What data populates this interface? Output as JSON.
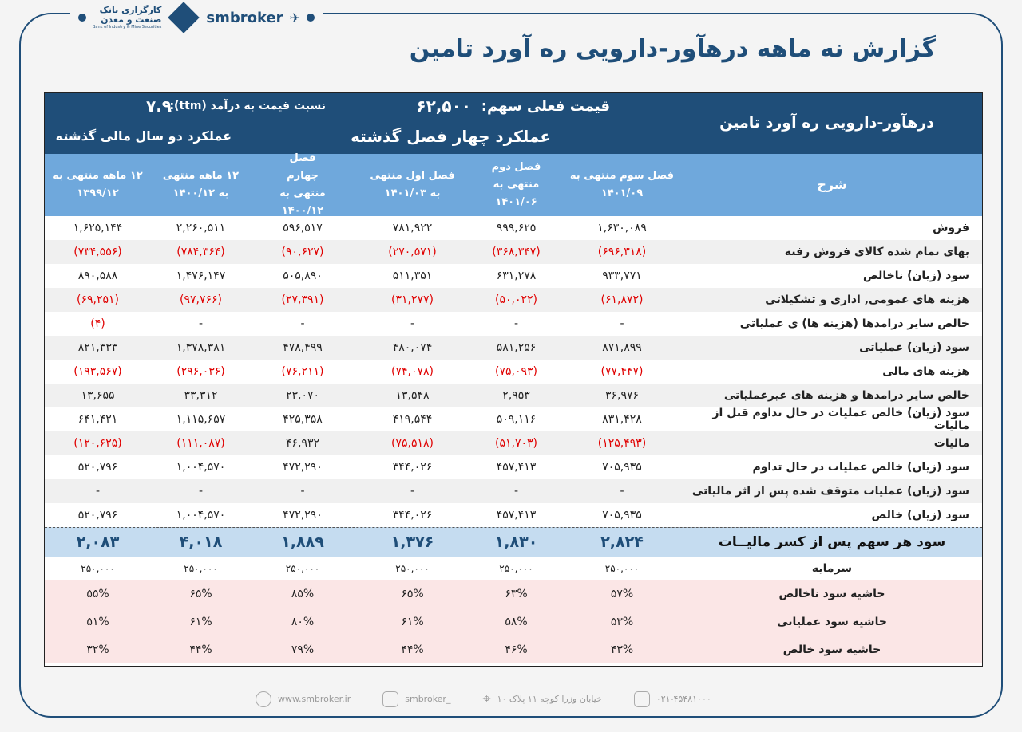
{
  "brand": {
    "name": "smbroker",
    "logo_fa_1": "کارگزاری بانک",
    "logo_fa_2": "صنعت و معدن",
    "logo_en": "Bank of Industry & Mine Securities"
  },
  "title": "گزارش نه ماهه درهآور-دارویی ره آورد تامین",
  "header": {
    "company": "درهآور-دارویی ره آورد تامین",
    "price_label": "قیمت فعلی سهم:",
    "price_value": "۶۲,۵۰۰",
    "pe_label": "نسبت  قیمت به درآمد (ttm):",
    "pe_value": "۷.۹",
    "four_quarters": "عملکرد چهار فصل گذشته",
    "two_years": "عملکرد دو سال مالی گذشته"
  },
  "columns": {
    "label": "شرح",
    "c1": "فصل سوم منتهی به ۱۴۰۱/۰۹",
    "c2": "فصل دوم منتهی به ۱۴۰۱/۰۶",
    "c3": "فصل اول منتهی به ۱۴۰۱/۰۳",
    "c4": "فصل چهارم منتهی به ۱۴۰۰/۱۲",
    "c5": "۱۲ ماهه منتهی به ۱۴۰۰/۱۲",
    "c6": "۱۲ ماهه منتهی به ۱۳۹۹/۱۲"
  },
  "rows": [
    {
      "label": "فروش",
      "values": [
        "۱,۶۳۰,۰۸۹",
        "۹۹۹,۶۲۵",
        "۷۸۱,۹۲۲",
        "۵۹۶,۵۱۷",
        "۲,۲۶۰,۵۱۱",
        "۱,۶۲۵,۱۴۴"
      ]
    },
    {
      "label": "بهای تمام شده کالای فروش رفته",
      "values": [
        "(۶۹۶,۳۱۸)",
        "(۳۶۸,۳۴۷)",
        "(۲۷۰,۵۷۱)",
        "(۹۰,۶۲۷)",
        "(۷۸۴,۳۶۴)",
        "(۷۳۴,۵۵۶)"
      ]
    },
    {
      "label": "سود (زیان) ناخالص",
      "values": [
        "۹۳۳,۷۷۱",
        "۶۳۱,۲۷۸",
        "۵۱۱,۳۵۱",
        "۵۰۵,۸۹۰",
        "۱,۴۷۶,۱۴۷",
        "۸۹۰,۵۸۸"
      ]
    },
    {
      "label": "هزینه های عمومی, اداری و تشکیلاتی",
      "values": [
        "(۶۱,۸۷۲)",
        "(۵۰,۰۲۲)",
        "(۳۱,۲۷۷)",
        "(۲۷,۳۹۱)",
        "(۹۷,۷۶۶)",
        "(۶۹,۲۵۱)"
      ]
    },
    {
      "label": "خالص سایر درامدها (هزینه ها) ی عملیاتی",
      "values": [
        "-",
        "-",
        "-",
        "-",
        "-",
        "(۴)"
      ]
    },
    {
      "label": "سود (زیان) عملیاتی",
      "values": [
        "۸۷۱,۸۹۹",
        "۵۸۱,۲۵۶",
        "۴۸۰,۰۷۴",
        "۴۷۸,۴۹۹",
        "۱,۳۷۸,۳۸۱",
        "۸۲۱,۳۳۳"
      ]
    },
    {
      "label": "هزینه های مالی",
      "values": [
        "(۷۷,۴۴۷)",
        "(۷۵,۰۹۳)",
        "(۷۴,۰۷۸)",
        "(۷۶,۲۱۱)",
        "(۲۹۶,۰۳۶)",
        "(۱۹۳,۵۶۷)"
      ]
    },
    {
      "label": "خالص سایر درامدها و هزینه های غیرعملیاتی",
      "values": [
        "۳۶,۹۷۶",
        "۲,۹۵۳",
        "۱۳,۵۴۸",
        "۲۳,۰۷۰",
        "۳۳,۳۱۲",
        "۱۳,۶۵۵"
      ]
    },
    {
      "label": "سود (زیان) خالص عملیات در حال تداوم قبل از مالیات",
      "values": [
        "۸۳۱,۴۲۸",
        "۵۰۹,۱۱۶",
        "۴۱۹,۵۴۴",
        "۴۲۵,۳۵۸",
        "۱,۱۱۵,۶۵۷",
        "۶۴۱,۴۲۱"
      ]
    },
    {
      "label": "مالیات",
      "values": [
        "(۱۲۵,۴۹۳)",
        "(۵۱,۷۰۳)",
        "(۷۵,۵۱۸)",
        "۴۶,۹۳۲",
        "(۱۱۱,۰۸۷)",
        "(۱۲۰,۶۲۵)"
      ]
    },
    {
      "label": "سود (زیان) خالص عملیات در حال تداوم",
      "values": [
        "۷۰۵,۹۳۵",
        "۴۵۷,۴۱۳",
        "۳۴۴,۰۲۶",
        "۴۷۲,۲۹۰",
        "۱,۰۰۴,۵۷۰",
        "۵۲۰,۷۹۶"
      ]
    },
    {
      "label": "سود (زیان) عملیات متوقف شده پس از اثر مالیاتی",
      "values": [
        "-",
        "-",
        "-",
        "-",
        "-",
        "-"
      ]
    },
    {
      "label": "سود (زیان) خالص",
      "values": [
        "۷۰۵,۹۳۵",
        "۴۵۷,۴۱۳",
        "۳۴۴,۰۲۶",
        "۴۷۲,۲۹۰",
        "۱,۰۰۴,۵۷۰",
        "۵۲۰,۷۹۶"
      ]
    }
  ],
  "eps": {
    "label": "سود هر سهم پس از کسر مالیــات",
    "values": [
      "۲,۸۲۴",
      "۱,۸۳۰",
      "۱,۳۷۶",
      "۱,۸۸۹",
      "۴,۰۱۸",
      "۲,۰۸۳"
    ]
  },
  "capital": {
    "label": "سرمایه",
    "values": [
      "۲۵۰,۰۰۰",
      "۲۵۰,۰۰۰",
      "۲۵۰,۰۰۰",
      "۲۵۰,۰۰۰",
      "۲۵۰,۰۰۰",
      "۲۵۰,۰۰۰"
    ]
  },
  "margins": [
    {
      "label": "حاشیه سود ناخالص",
      "values": [
        "۵۷%",
        "۶۳%",
        "۶۵%",
        "۸۵%",
        "۶۵%",
        "۵۵%"
      ]
    },
    {
      "label": "حاشیه سود عملیاتی",
      "values": [
        "۵۳%",
        "۵۸%",
        "۶۱%",
        "۸۰%",
        "۶۱%",
        "۵۱%"
      ]
    },
    {
      "label": "حاشیه سود خالص",
      "values": [
        "۴۳%",
        "۴۶%",
        "۴۴%",
        "۷۹%",
        "۴۴%",
        "۳۲%"
      ]
    }
  ],
  "footer": {
    "phone": "۰۲۱-۴۵۴۸۱۰۰۰",
    "address": "خیابان وزرا کوچه ۱۱ پلاک ۱۰",
    "instagram": "smbroker_",
    "website": "www.smbroker.ir"
  },
  "colors": {
    "primary": "#1f4e79",
    "subheader": "#6fa8dc",
    "negative": "#e00000",
    "eps_bg": "#c5dcf0",
    "margin_bg": "#fbe6e6"
  }
}
